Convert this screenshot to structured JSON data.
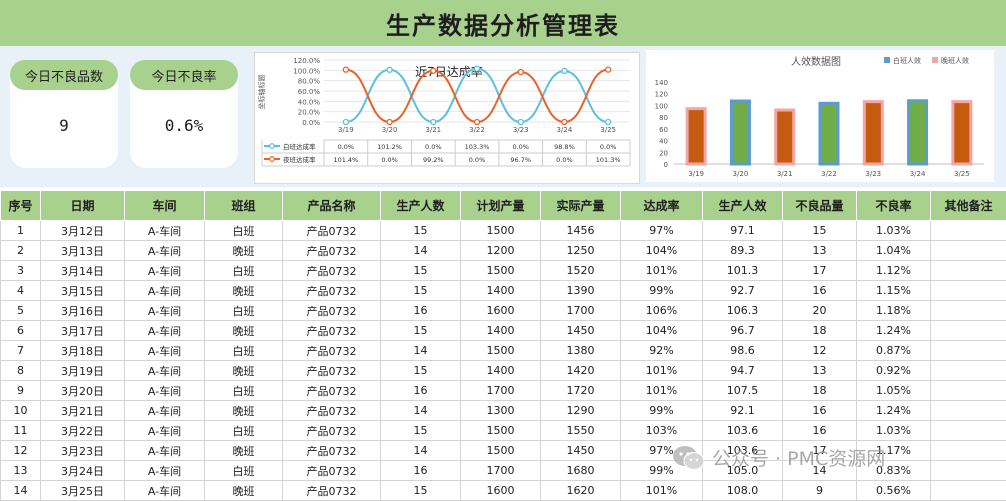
{
  "title": "生产数据分析管理表",
  "kpis": [
    {
      "label": "今日不良品数",
      "value": "9"
    },
    {
      "label": "今日不良率",
      "value": "0.6%"
    }
  ],
  "rate_chart": {
    "title": "近7日达成率",
    "ylabel": "坐标轴标题",
    "yticks": [
      "120.0%",
      "100.0%",
      "80.0%",
      "60.0%",
      "40.0%",
      "20.0%",
      "0.0%"
    ],
    "dates": [
      "3/19",
      "3/20",
      "3/21",
      "3/22",
      "3/23",
      "3/24",
      "3/25"
    ],
    "series": [
      {
        "name": "白班达成率",
        "color": "#5bc0de",
        "values": [
          0.0,
          101.2,
          0.0,
          103.3,
          0.0,
          98.8,
          0.0
        ],
        "labels": [
          "0.0%",
          "101.2%",
          "0.0%",
          "103.3%",
          "0.0%",
          "98.8%",
          "0.0%"
        ]
      },
      {
        "name": "夜班达成率",
        "color": "#e8622c",
        "values": [
          101.4,
          0.0,
          99.2,
          0.0,
          96.7,
          0.0,
          101.3
        ],
        "labels": [
          "101.4%",
          "0.0%",
          "99.2%",
          "0.0%",
          "96.7%",
          "0.0%",
          "101.3%"
        ]
      }
    ]
  },
  "eff_chart": {
    "title": "人效数据图",
    "legend": [
      {
        "name": "白班人效",
        "color": "#5b9bd5"
      },
      {
        "name": "晚班人效",
        "color": "#f4a6a6"
      }
    ],
    "yticks": [
      "140",
      "120",
      "100",
      "80",
      "60",
      "40",
      "20",
      "0"
    ],
    "ymax": 140,
    "dates": [
      "3/19",
      "3/20",
      "3/21",
      "3/22",
      "3/23",
      "3/24",
      "3/25"
    ],
    "values": [
      94.5,
      107.5,
      92.1,
      103.6,
      106.5,
      108.0,
      106.5
    ],
    "fills": [
      "#c55a11",
      "#70ad47",
      "#c55a11",
      "#70ad47",
      "#c55a11",
      "#70ad47",
      "#c55a11"
    ],
    "borders": [
      "#f4a6a6",
      "#5b9bd5",
      "#f4a6a6",
      "#5b9bd5",
      "#f4a6a6",
      "#5b9bd5",
      "#f4a6a6"
    ]
  },
  "table": {
    "headers": [
      "序号",
      "日期",
      "车间",
      "班组",
      "产品名称",
      "生产人数",
      "计划产量",
      "实际产量",
      "达成率",
      "生产人效",
      "不良品量",
      "不良率",
      "其他备注"
    ],
    "rows": [
      [
        "1",
        "3月12日",
        "A-车间",
        "白班",
        "产品0732",
        "15",
        "1500",
        "1456",
        "97%",
        "97.1",
        "15",
        "1.03%",
        ""
      ],
      [
        "2",
        "3月13日",
        "A-车间",
        "晚班",
        "产品0732",
        "14",
        "1200",
        "1250",
        "104%",
        "89.3",
        "13",
        "1.04%",
        ""
      ],
      [
        "3",
        "3月14日",
        "A-车间",
        "白班",
        "产品0732",
        "15",
        "1500",
        "1520",
        "101%",
        "101.3",
        "17",
        "1.12%",
        ""
      ],
      [
        "4",
        "3月15日",
        "A-车间",
        "晚班",
        "产品0732",
        "15",
        "1400",
        "1390",
        "99%",
        "92.7",
        "16",
        "1.15%",
        ""
      ],
      [
        "5",
        "3月16日",
        "A-车间",
        "白班",
        "产品0732",
        "16",
        "1600",
        "1700",
        "106%",
        "106.3",
        "20",
        "1.18%",
        ""
      ],
      [
        "6",
        "3月17日",
        "A-车间",
        "晚班",
        "产品0732",
        "15",
        "1400",
        "1450",
        "104%",
        "96.7",
        "18",
        "1.24%",
        ""
      ],
      [
        "7",
        "3月18日",
        "A-车间",
        "白班",
        "产品0732",
        "14",
        "1500",
        "1380",
        "92%",
        "98.6",
        "12",
        "0.87%",
        ""
      ],
      [
        "8",
        "3月19日",
        "A-车间",
        "晚班",
        "产品0732",
        "15",
        "1400",
        "1420",
        "101%",
        "94.7",
        "13",
        "0.92%",
        ""
      ],
      [
        "9",
        "3月20日",
        "A-车间",
        "白班",
        "产品0732",
        "16",
        "1700",
        "1720",
        "101%",
        "107.5",
        "18",
        "1.05%",
        ""
      ],
      [
        "10",
        "3月21日",
        "A-车间",
        "晚班",
        "产品0732",
        "14",
        "1300",
        "1290",
        "99%",
        "92.1",
        "16",
        "1.24%",
        ""
      ],
      [
        "11",
        "3月22日",
        "A-车间",
        "白班",
        "产品0732",
        "15",
        "1500",
        "1550",
        "103%",
        "103.6",
        "16",
        "1.03%",
        ""
      ],
      [
        "12",
        "3月23日",
        "A-车间",
        "晚班",
        "产品0732",
        "14",
        "1500",
        "1450",
        "97%",
        "103.6",
        "17",
        "1.17%",
        ""
      ],
      [
        "13",
        "3月24日",
        "A-车间",
        "白班",
        "产品0732",
        "16",
        "1700",
        "1680",
        "99%",
        "105.0",
        "14",
        "0.83%",
        ""
      ],
      [
        "14",
        "3月25日",
        "A-车间",
        "晚班",
        "产品0732",
        "15",
        "1600",
        "1620",
        "101%",
        "108.0",
        "9",
        "0.56%",
        ""
      ]
    ]
  },
  "watermark": "公众号 · PMC资源网",
  "chart_data": [
    {
      "type": "line",
      "title": "近7日达成率",
      "ylabel": "坐标轴标题",
      "x": [
        "3/19",
        "3/20",
        "3/21",
        "3/22",
        "3/23",
        "3/24",
        "3/25"
      ],
      "ylim": [
        0,
        120
      ],
      "series": [
        {
          "name": "白班达成率",
          "values": [
            0.0,
            101.2,
            0.0,
            103.3,
            0.0,
            98.8,
            0.0
          ]
        },
        {
          "name": "夜班达成率",
          "values": [
            101.4,
            0.0,
            99.2,
            0.0,
            96.7,
            0.0,
            101.3
          ]
        }
      ]
    },
    {
      "type": "bar",
      "title": "人效数据图",
      "categories": [
        "3/19",
        "3/20",
        "3/21",
        "3/22",
        "3/23",
        "3/24",
        "3/25"
      ],
      "values": [
        94.5,
        107.5,
        92.1,
        103.6,
        106.5,
        108.0,
        106.5
      ],
      "ylim": [
        0,
        140
      ]
    }
  ]
}
